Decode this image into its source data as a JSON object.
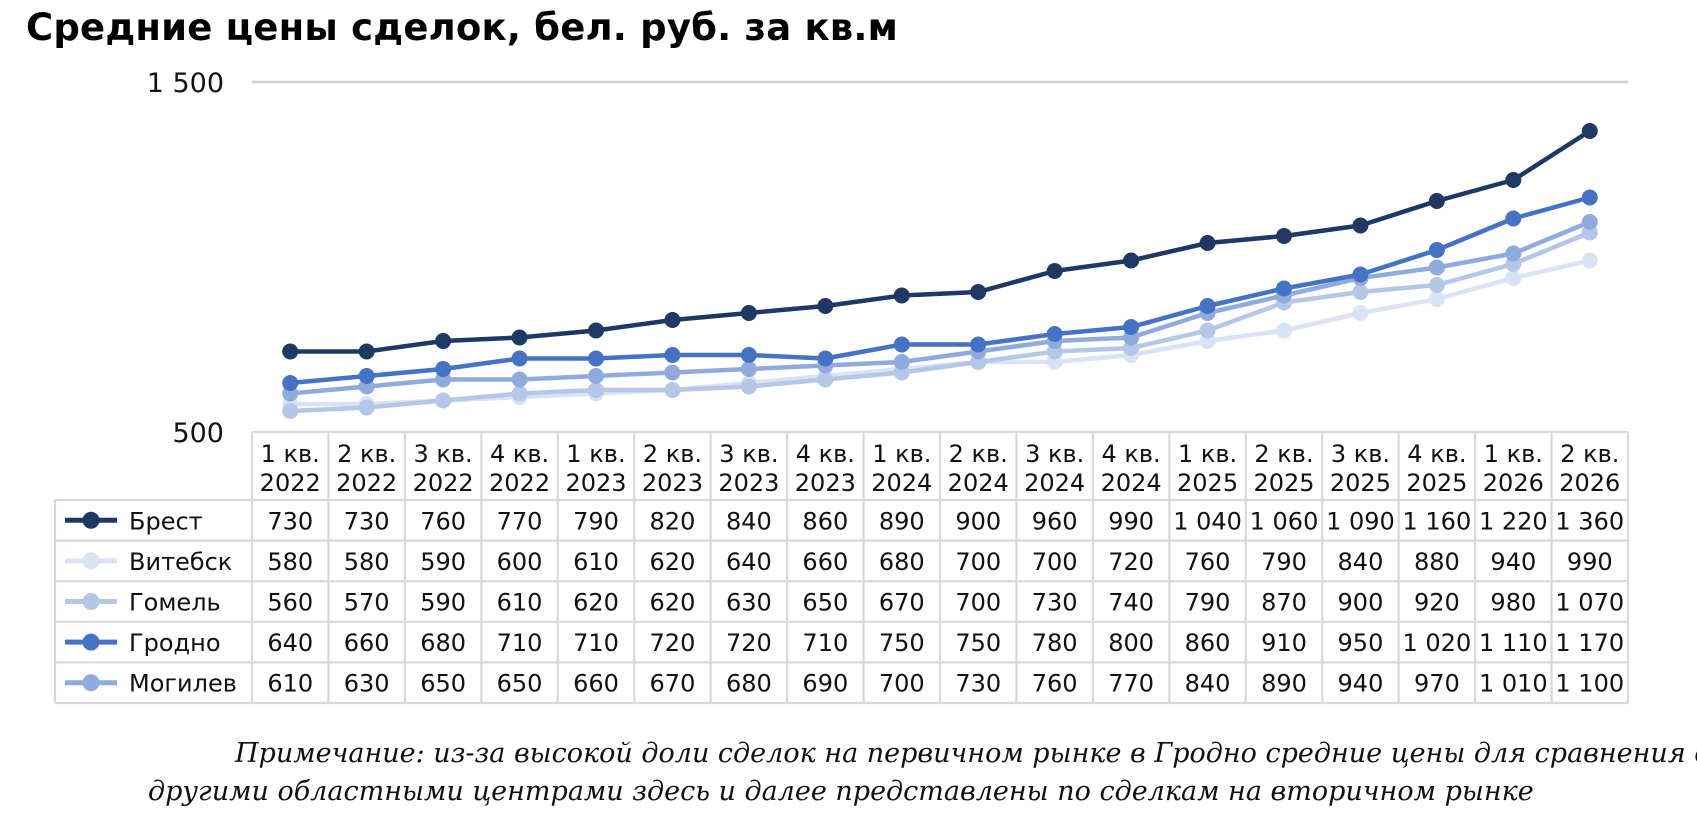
{
  "title": "Средние цены сделок, бел. руб. за кв.м",
  "note": {
    "line1": "Примечание: из-за высокой доли сделок на первичном рынке в Гродно средние цены для сравнения с",
    "line2": "другими областными центрами здесь и далее представлены по сделкам на вторичном рынке"
  },
  "chart_data": {
    "type": "line",
    "title": "Средние цены сделок, бел. руб. за кв.м",
    "ylim": [
      500,
      1500
    ],
    "yticks": [
      "1 500",
      "500"
    ],
    "grid": "top line only",
    "legend": "data table below chart",
    "categories": [
      [
        "1 кв.",
        "2022"
      ],
      [
        "2 кв.",
        "2022"
      ],
      [
        "3 кв.",
        "2022"
      ],
      [
        "4 кв.",
        "2022"
      ],
      [
        "1 кв.",
        "2023"
      ],
      [
        "2 кв.",
        "2023"
      ],
      [
        "3 кв.",
        "2023"
      ],
      [
        "4 кв.",
        "2023"
      ],
      [
        "1 кв.",
        "2024"
      ],
      [
        "2 кв.",
        "2024"
      ],
      [
        "3 кв.",
        "2024"
      ],
      [
        "4 кв.",
        "2024"
      ],
      [
        "1 кв.",
        "2025"
      ],
      [
        "2 кв.",
        "2025"
      ],
      [
        "3 кв.",
        "2025"
      ],
      [
        "4 кв.",
        "2025"
      ],
      [
        "1 кв.",
        "2026"
      ],
      [
        "2 кв.",
        "2026"
      ]
    ],
    "series": [
      {
        "name": "Брест",
        "color": "#1f3864",
        "values": [
          730,
          730,
          760,
          770,
          790,
          820,
          840,
          860,
          890,
          900,
          960,
          990,
          1040,
          1060,
          1090,
          1160,
          1220,
          1360
        ],
        "labels": [
          "730",
          "730",
          "760",
          "770",
          "790",
          "820",
          "840",
          "860",
          "890",
          "900",
          "960",
          "990",
          "1 040",
          "1 060",
          "1 090",
          "1 160",
          "1 220",
          "1 360"
        ]
      },
      {
        "name": "Витебск",
        "color": "#dae3f3",
        "values": [
          580,
          580,
          590,
          600,
          610,
          620,
          640,
          660,
          680,
          700,
          700,
          720,
          760,
          790,
          840,
          880,
          940,
          990
        ],
        "labels": [
          "580",
          "580",
          "590",
          "600",
          "610",
          "620",
          "640",
          "660",
          "680",
          "700",
          "700",
          "720",
          "760",
          "790",
          "840",
          "880",
          "940",
          "990"
        ]
      },
      {
        "name": "Гомель",
        "color": "#b4c7e7",
        "values": [
          560,
          570,
          590,
          610,
          620,
          620,
          630,
          650,
          670,
          700,
          730,
          740,
          790,
          870,
          900,
          920,
          980,
          1070
        ],
        "labels": [
          "560",
          "570",
          "590",
          "610",
          "620",
          "620",
          "630",
          "650",
          "670",
          "700",
          "730",
          "740",
          "790",
          "870",
          "900",
          "920",
          "980",
          "1 070"
        ]
      },
      {
        "name": "Гродно",
        "color": "#4472c4",
        "values": [
          640,
          660,
          680,
          710,
          710,
          720,
          720,
          710,
          750,
          750,
          780,
          800,
          860,
          910,
          950,
          1020,
          1110,
          1170
        ],
        "labels": [
          "640",
          "660",
          "680",
          "710",
          "710",
          "720",
          "720",
          "710",
          "750",
          "750",
          "780",
          "800",
          "860",
          "910",
          "950",
          "1 020",
          "1 110",
          "1 170"
        ]
      },
      {
        "name": "Могилев",
        "color": "#8faadc",
        "values": [
          610,
          630,
          650,
          650,
          660,
          670,
          680,
          690,
          700,
          730,
          760,
          770,
          840,
          890,
          940,
          970,
          1010,
          1100
        ],
        "labels": [
          "610",
          "630",
          "650",
          "650",
          "660",
          "670",
          "680",
          "690",
          "700",
          "730",
          "760",
          "770",
          "840",
          "890",
          "940",
          "970",
          "1 010",
          "1 100"
        ]
      }
    ]
  }
}
